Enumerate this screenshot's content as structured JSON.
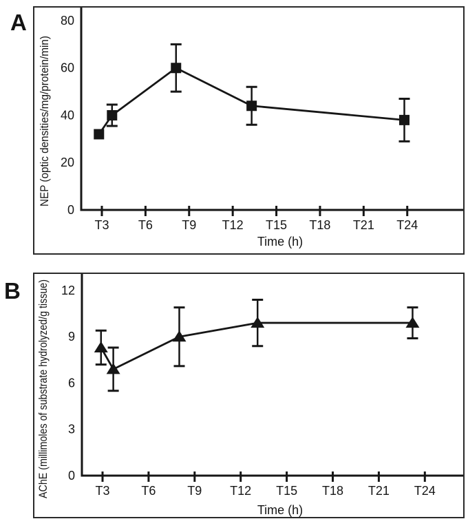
{
  "figure": {
    "background": "#ffffff",
    "ink_color": "#161616",
    "border_color": "#2a2a2a"
  },
  "chart_data": [
    {
      "type": "line",
      "panel_label": "A",
      "title": "",
      "xlabel": "Time (h)",
      "ylabel": "NEP (optic densities/mg/protein/min)",
      "ylim": [
        0,
        80
      ],
      "yticks": [
        0,
        20,
        40,
        60,
        80
      ],
      "xticks": [
        {
          "hour": 3,
          "label": "T3"
        },
        {
          "hour": 6,
          "label": "T6"
        },
        {
          "hour": 9,
          "label": "T9"
        },
        {
          "hour": 12,
          "label": "T12"
        },
        {
          "hour": 15,
          "label": "T15"
        },
        {
          "hour": 18,
          "label": "T18"
        },
        {
          "hour": 21,
          "label": "T21"
        },
        {
          "hour": 24,
          "label": "T24"
        }
      ],
      "grid": false,
      "legend": "none",
      "marker": "square",
      "series": [
        {
          "name": "NEP",
          "points": [
            {
              "x_hour": 2.8,
              "y": 32,
              "err": 0
            },
            {
              "x_hour": 3.7,
              "y": 40,
              "err": 4.5
            },
            {
              "x_hour": 8.1,
              "y": 60,
              "err": 10
            },
            {
              "x_hour": 13.3,
              "y": 44,
              "err": 8
            },
            {
              "x_hour": 23.8,
              "y": 38,
              "err": 9
            }
          ]
        }
      ]
    },
    {
      "type": "line",
      "panel_label": "B",
      "title": "",
      "xlabel": "Time (h)",
      "ylabel": "AChE (millimoles of substrate hydrolyzed/g tissue)",
      "ylim": [
        0,
        12
      ],
      "yticks": [
        0,
        3,
        6,
        9,
        12
      ],
      "xticks": [
        {
          "hour": 3,
          "label": "T3"
        },
        {
          "hour": 6,
          "label": "T6"
        },
        {
          "hour": 9,
          "label": "T9"
        },
        {
          "hour": 12,
          "label": "T12"
        },
        {
          "hour": 15,
          "label": "T15"
        },
        {
          "hour": 18,
          "label": "T18"
        },
        {
          "hour": 21,
          "label": "T21"
        },
        {
          "hour": 24,
          "label": "T24"
        }
      ],
      "grid": false,
      "legend": "none",
      "marker": "triangle",
      "series": [
        {
          "name": "AChE",
          "points": [
            {
              "x_hour": 2.9,
              "y": 8.3,
              "err": 1.1
            },
            {
              "x_hour": 3.7,
              "y": 6.9,
              "err": 1.4
            },
            {
              "x_hour": 8.0,
              "y": 9.0,
              "err": 1.9
            },
            {
              "x_hour": 13.1,
              "y": 9.9,
              "err": 1.5
            },
            {
              "x_hour": 23.2,
              "y": 9.9,
              "err": 1.0
            }
          ]
        }
      ]
    }
  ]
}
